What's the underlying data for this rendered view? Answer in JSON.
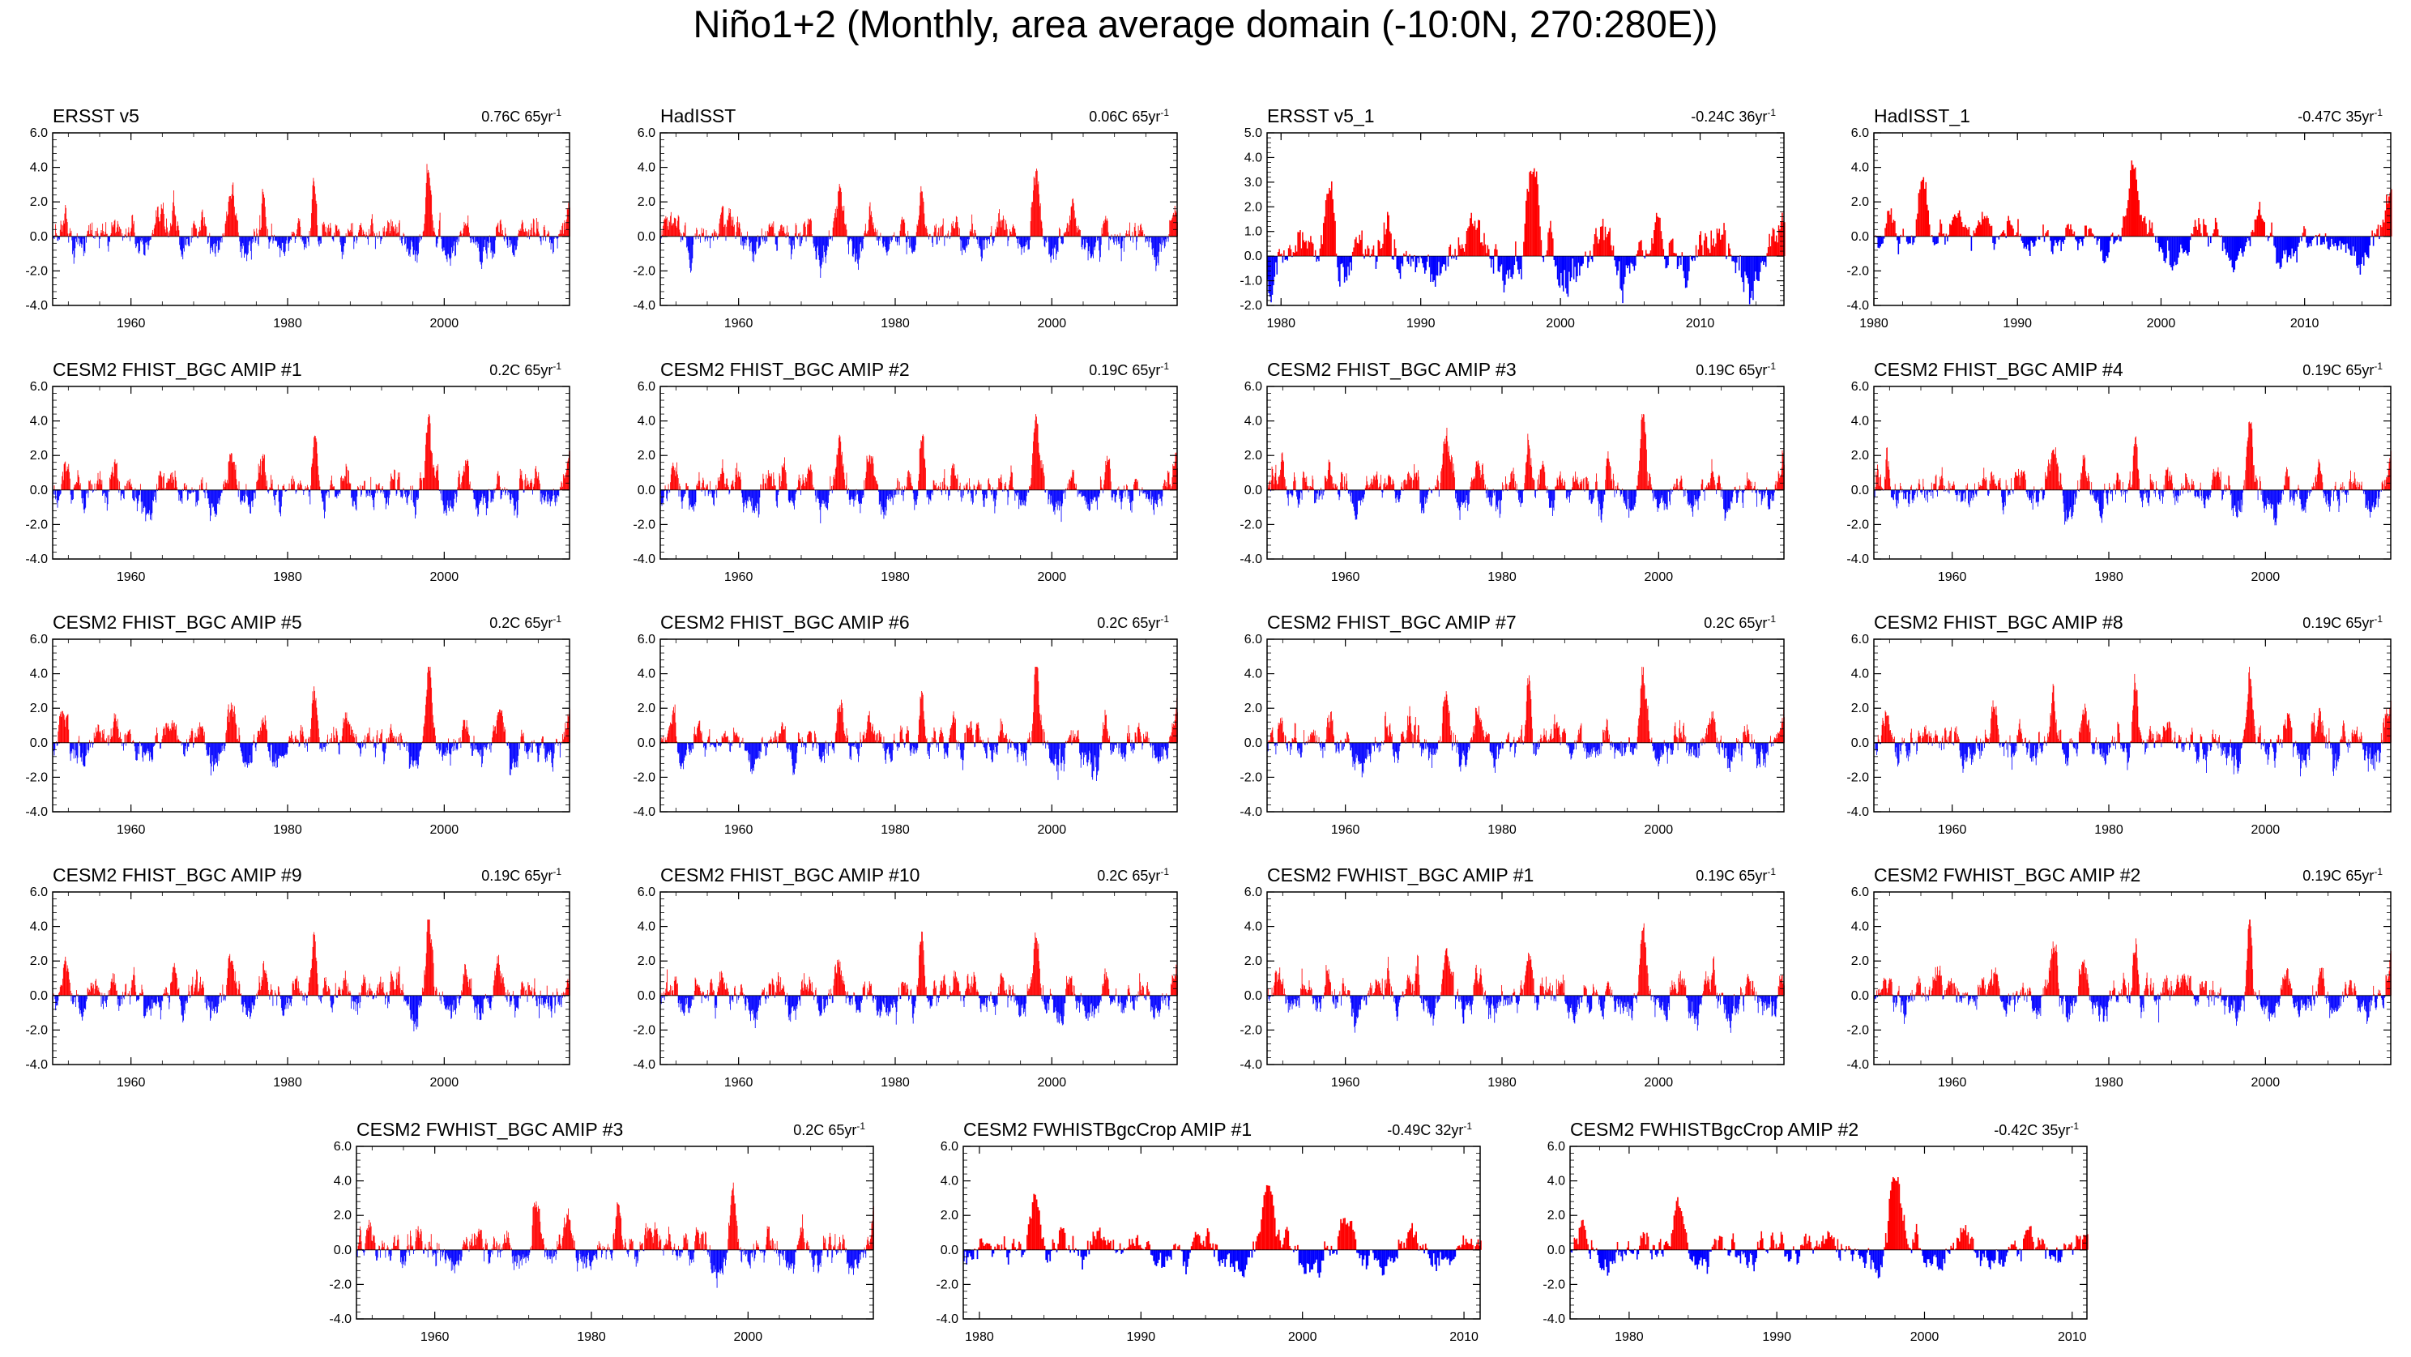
{
  "title": "Niño1+2 (Monthly, area average domain (-10:0N, 270:280E))",
  "colors": {
    "positive": "#ff0000",
    "negative": "#0000ff",
    "axis": "#000000"
  },
  "chart_data": [
    {
      "type": "bar",
      "title": "ERSST v5",
      "trend_value": "0.76C",
      "trend_period": "65yr",
      "trend_exp": "-1",
      "xlim": [
        1950,
        2016
      ],
      "x_ticks": [
        1960,
        1980,
        2000
      ],
      "x_tick_labels": [
        "1960",
        "1980",
        "2000"
      ],
      "ylim": [
        -4,
        6
      ],
      "y_ticks": [
        -4,
        -2,
        0,
        2,
        4,
        6
      ],
      "y_tick_labels": [
        "-4.0",
        "-2.0",
        "0.0",
        "2.0",
        "4.0",
        "6.0"
      ]
    },
    {
      "type": "bar",
      "title": "HadISST",
      "trend_value": "0.06C",
      "trend_period": "65yr",
      "trend_exp": "-1",
      "xlim": [
        1950,
        2016
      ],
      "x_ticks": [
        1960,
        1980,
        2000
      ],
      "x_tick_labels": [
        "1960",
        "1980",
        "2000"
      ],
      "ylim": [
        -4,
        6
      ],
      "y_ticks": [
        -4,
        -2,
        0,
        2,
        4,
        6
      ],
      "y_tick_labels": [
        "-4.0",
        "-2.0",
        "0.0",
        "2.0",
        "4.0",
        "6.0"
      ]
    },
    {
      "type": "bar",
      "title": "ERSST v5_1",
      "trend_value": "-0.24C",
      "trend_period": "36yr",
      "trend_exp": "-1",
      "xlim": [
        1979,
        2016
      ],
      "x_ticks": [
        1980,
        1990,
        2000,
        2010
      ],
      "x_tick_labels": [
        "1980",
        "1990",
        "2000",
        "2010"
      ],
      "ylim": [
        -2,
        5
      ],
      "y_ticks": [
        -2,
        -1,
        0,
        1,
        2,
        3,
        4,
        5
      ],
      "y_tick_labels": [
        "-2.0",
        "-1.0",
        "0.0",
        "1.0",
        "2.0",
        "3.0",
        "4.0",
        "5.0"
      ]
    },
    {
      "type": "bar",
      "title": "HadISST_1",
      "trend_value": "-0.47C",
      "trend_period": "35yr",
      "trend_exp": "-1",
      "xlim": [
        1980,
        2016
      ],
      "x_ticks": [
        1980,
        1990,
        2000,
        2010
      ],
      "x_tick_labels": [
        "1980",
        "1990",
        "2000",
        "2010"
      ],
      "ylim": [
        -4,
        6
      ],
      "y_ticks": [
        -4,
        -2,
        0,
        2,
        4,
        6
      ],
      "y_tick_labels": [
        "-4.0",
        "-2.0",
        "0.0",
        "2.0",
        "4.0",
        "6.0"
      ]
    },
    {
      "type": "bar",
      "title": "CESM2 FHIST_BGC AMIP #1",
      "trend_value": "0.2C",
      "trend_period": "65yr",
      "trend_exp": "-1",
      "xlim": [
        1950,
        2016
      ],
      "x_ticks": [
        1960,
        1980,
        2000
      ],
      "x_tick_labels": [
        "1960",
        "1980",
        "2000"
      ],
      "ylim": [
        -4,
        6
      ],
      "y_ticks": [
        -4,
        -2,
        0,
        2,
        4,
        6
      ],
      "y_tick_labels": [
        "-4.0",
        "-2.0",
        "0.0",
        "2.0",
        "4.0",
        "6.0"
      ]
    },
    {
      "type": "bar",
      "title": "CESM2 FHIST_BGC AMIP #2",
      "trend_value": "0.19C",
      "trend_period": "65yr",
      "trend_exp": "-1",
      "xlim": [
        1950,
        2016
      ],
      "x_ticks": [
        1960,
        1980,
        2000
      ],
      "x_tick_labels": [
        "1960",
        "1980",
        "2000"
      ],
      "ylim": [
        -4,
        6
      ],
      "y_ticks": [
        -4,
        -2,
        0,
        2,
        4,
        6
      ],
      "y_tick_labels": [
        "-4.0",
        "-2.0",
        "0.0",
        "2.0",
        "4.0",
        "6.0"
      ]
    },
    {
      "type": "bar",
      "title": "CESM2 FHIST_BGC AMIP #3",
      "trend_value": "0.19C",
      "trend_period": "65yr",
      "trend_exp": "-1",
      "xlim": [
        1950,
        2016
      ],
      "x_ticks": [
        1960,
        1980,
        2000
      ],
      "x_tick_labels": [
        "1960",
        "1980",
        "2000"
      ],
      "ylim": [
        -4,
        6
      ],
      "y_ticks": [
        -4,
        -2,
        0,
        2,
        4,
        6
      ],
      "y_tick_labels": [
        "-4.0",
        "-2.0",
        "0.0",
        "2.0",
        "4.0",
        "6.0"
      ]
    },
    {
      "type": "bar",
      "title": "CESM2 FHIST_BGC AMIP #4",
      "trend_value": "0.19C",
      "trend_period": "65yr",
      "trend_exp": "-1",
      "xlim": [
        1950,
        2016
      ],
      "x_ticks": [
        1960,
        1980,
        2000
      ],
      "x_tick_labels": [
        "1960",
        "1980",
        "2000"
      ],
      "ylim": [
        -4,
        6
      ],
      "y_ticks": [
        -4,
        -2,
        0,
        2,
        4,
        6
      ],
      "y_tick_labels": [
        "-4.0",
        "-2.0",
        "0.0",
        "2.0",
        "4.0",
        "6.0"
      ]
    },
    {
      "type": "bar",
      "title": "CESM2 FHIST_BGC AMIP #5",
      "trend_value": "0.2C",
      "trend_period": "65yr",
      "trend_exp": "-1",
      "xlim": [
        1950,
        2016
      ],
      "x_ticks": [
        1960,
        1980,
        2000
      ],
      "x_tick_labels": [
        "1960",
        "1980",
        "2000"
      ],
      "ylim": [
        -4,
        6
      ],
      "y_ticks": [
        -4,
        -2,
        0,
        2,
        4,
        6
      ],
      "y_tick_labels": [
        "-4.0",
        "-2.0",
        "0.0",
        "2.0",
        "4.0",
        "6.0"
      ]
    },
    {
      "type": "bar",
      "title": "CESM2 FHIST_BGC AMIP #6",
      "trend_value": "0.2C",
      "trend_period": "65yr",
      "trend_exp": "-1",
      "xlim": [
        1950,
        2016
      ],
      "x_ticks": [
        1960,
        1980,
        2000
      ],
      "x_tick_labels": [
        "1960",
        "1980",
        "2000"
      ],
      "ylim": [
        -4,
        6
      ],
      "y_ticks": [
        -4,
        -2,
        0,
        2,
        4,
        6
      ],
      "y_tick_labels": [
        "-4.0",
        "-2.0",
        "0.0",
        "2.0",
        "4.0",
        "6.0"
      ]
    },
    {
      "type": "bar",
      "title": "CESM2 FHIST_BGC AMIP #7",
      "trend_value": "0.2C",
      "trend_period": "65yr",
      "trend_exp": "-1",
      "xlim": [
        1950,
        2016
      ],
      "x_ticks": [
        1960,
        1980,
        2000
      ],
      "x_tick_labels": [
        "1960",
        "1980",
        "2000"
      ],
      "ylim": [
        -4,
        6
      ],
      "y_ticks": [
        -4,
        -2,
        0,
        2,
        4,
        6
      ],
      "y_tick_labels": [
        "-4.0",
        "-2.0",
        "0.0",
        "2.0",
        "4.0",
        "6.0"
      ]
    },
    {
      "type": "bar",
      "title": "CESM2 FHIST_BGC AMIP #8",
      "trend_value": "0.19C",
      "trend_period": "65yr",
      "trend_exp": "-1",
      "xlim": [
        1950,
        2016
      ],
      "x_ticks": [
        1960,
        1980,
        2000
      ],
      "x_tick_labels": [
        "1960",
        "1980",
        "2000"
      ],
      "ylim": [
        -4,
        6
      ],
      "y_ticks": [
        -4,
        -2,
        0,
        2,
        4,
        6
      ],
      "y_tick_labels": [
        "-4.0",
        "-2.0",
        "0.0",
        "2.0",
        "4.0",
        "6.0"
      ]
    },
    {
      "type": "bar",
      "title": "CESM2 FHIST_BGC AMIP #9",
      "trend_value": "0.19C",
      "trend_period": "65yr",
      "trend_exp": "-1",
      "xlim": [
        1950,
        2016
      ],
      "x_ticks": [
        1960,
        1980,
        2000
      ],
      "x_tick_labels": [
        "1960",
        "1980",
        "2000"
      ],
      "ylim": [
        -4,
        6
      ],
      "y_ticks": [
        -4,
        -2,
        0,
        2,
        4,
        6
      ],
      "y_tick_labels": [
        "-4.0",
        "-2.0",
        "0.0",
        "2.0",
        "4.0",
        "6.0"
      ]
    },
    {
      "type": "bar",
      "title": "CESM2 FHIST_BGC AMIP #10",
      "trend_value": "0.2C",
      "trend_period": "65yr",
      "trend_exp": "-1",
      "xlim": [
        1950,
        2016
      ],
      "x_ticks": [
        1960,
        1980,
        2000
      ],
      "x_tick_labels": [
        "1960",
        "1980",
        "2000"
      ],
      "ylim": [
        -4,
        6
      ],
      "y_ticks": [
        -4,
        -2,
        0,
        2,
        4,
        6
      ],
      "y_tick_labels": [
        "-4.0",
        "-2.0",
        "0.0",
        "2.0",
        "4.0",
        "6.0"
      ]
    },
    {
      "type": "bar",
      "title": "CESM2 FWHIST_BGC AMIP #1",
      "trend_value": "0.19C",
      "trend_period": "65yr",
      "trend_exp": "-1",
      "xlim": [
        1950,
        2016
      ],
      "x_ticks": [
        1960,
        1980,
        2000
      ],
      "x_tick_labels": [
        "1960",
        "1980",
        "2000"
      ],
      "ylim": [
        -4,
        6
      ],
      "y_ticks": [
        -4,
        -2,
        0,
        2,
        4,
        6
      ],
      "y_tick_labels": [
        "-4.0",
        "-2.0",
        "0.0",
        "2.0",
        "4.0",
        "6.0"
      ]
    },
    {
      "type": "bar",
      "title": "CESM2 FWHIST_BGC AMIP #2",
      "trend_value": "0.19C",
      "trend_period": "65yr",
      "trend_exp": "-1",
      "xlim": [
        1950,
        2016
      ],
      "x_ticks": [
        1960,
        1980,
        2000
      ],
      "x_tick_labels": [
        "1960",
        "1980",
        "2000"
      ],
      "ylim": [
        -4,
        6
      ],
      "y_ticks": [
        -4,
        -2,
        0,
        2,
        4,
        6
      ],
      "y_tick_labels": [
        "-4.0",
        "-2.0",
        "0.0",
        "2.0",
        "4.0",
        "6.0"
      ]
    },
    {
      "type": "bar",
      "title": "CESM2 FWHIST_BGC AMIP #3",
      "trend_value": "0.2C",
      "trend_period": "65yr",
      "trend_exp": "-1",
      "xlim": [
        1950,
        2016
      ],
      "x_ticks": [
        1960,
        1980,
        2000
      ],
      "x_tick_labels": [
        "1960",
        "1980",
        "2000"
      ],
      "ylim": [
        -4,
        6
      ],
      "y_ticks": [
        -4,
        -2,
        0,
        2,
        4,
        6
      ],
      "y_tick_labels": [
        "-4.0",
        "-2.0",
        "0.0",
        "2.0",
        "4.0",
        "6.0"
      ]
    },
    {
      "type": "bar",
      "title": "CESM2 FWHISTBgcCrop AMIP #1",
      "trend_value": "-0.49C",
      "trend_period": "32yr",
      "trend_exp": "-1",
      "xlim": [
        1979,
        2011
      ],
      "x_ticks": [
        1980,
        1990,
        2000,
        2010
      ],
      "x_tick_labels": [
        "1980",
        "1990",
        "2000",
        "2010"
      ],
      "ylim": [
        -4,
        6
      ],
      "y_ticks": [
        -4,
        -2,
        0,
        2,
        4,
        6
      ],
      "y_tick_labels": [
        "-4.0",
        "-2.0",
        "0.0",
        "2.0",
        "4.0",
        "6.0"
      ]
    },
    {
      "type": "bar",
      "title": "CESM2 FWHISTBgcCrop AMIP #2",
      "trend_value": "-0.42C",
      "trend_period": "35yr",
      "trend_exp": "-1",
      "xlim": [
        1976,
        2011
      ],
      "x_ticks": [
        1980,
        1990,
        2000,
        2010
      ],
      "x_tick_labels": [
        "1980",
        "1990",
        "2000",
        "2010"
      ],
      "ylim": [
        -4,
        6
      ],
      "y_ticks": [
        -4,
        -2,
        0,
        2,
        4,
        6
      ],
      "y_tick_labels": [
        "-4.0",
        "-2.0",
        "0.0",
        "2.0",
        "4.0",
        "6.0"
      ]
    }
  ]
}
